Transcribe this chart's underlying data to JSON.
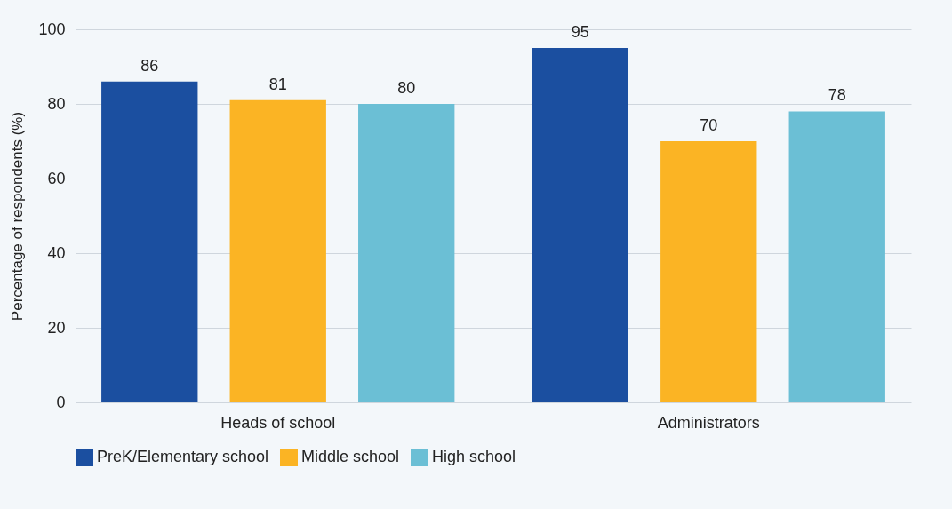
{
  "chart_data": {
    "type": "bar",
    "ylabel": "Percentage of respondents (%)",
    "categories": [
      "Heads of school",
      "Administrators"
    ],
    "series": [
      {
        "name": "PreK/Elementary school",
        "color": "#1b4fa0",
        "values": [
          86,
          95
        ]
      },
      {
        "name": "Middle school",
        "color": "#fbb424",
        "values": [
          81,
          70
        ]
      },
      {
        "name": "High school",
        "color": "#6bbfd5",
        "values": [
          80,
          78
        ]
      }
    ],
    "ylim": [
      0,
      100
    ],
    "yticks": [
      0,
      20,
      40,
      60,
      80,
      100
    ],
    "grid": "y",
    "legend": "bottom",
    "data_labels": true
  }
}
